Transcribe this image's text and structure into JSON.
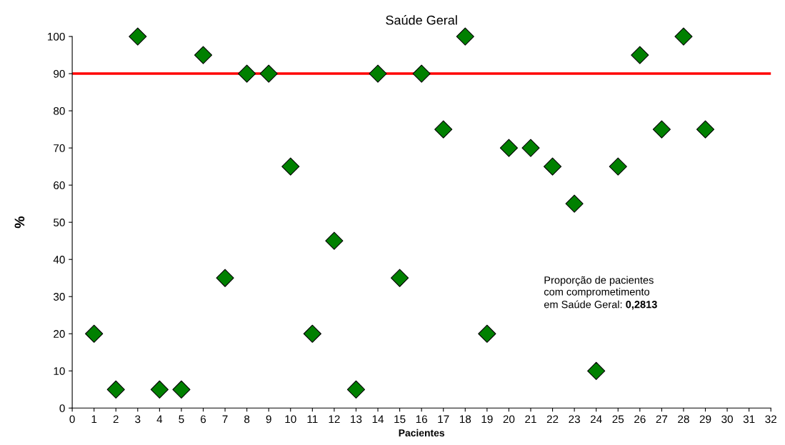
{
  "chart_data": {
    "type": "scatter",
    "title": "Saúde Geral",
    "xlabel": "Pacientes",
    "ylabel": "%",
    "x": [
      1,
      2,
      3,
      4,
      5,
      6,
      7,
      8,
      9,
      10,
      11,
      12,
      13,
      14,
      15,
      16,
      17,
      18,
      19,
      20,
      21,
      22,
      23,
      24,
      25,
      26,
      27,
      28,
      29
    ],
    "series": [
      {
        "color": "#008000",
        "values": [
          20,
          5,
          100,
          5,
          5,
          95,
          35,
          90,
          90,
          65,
          20,
          45,
          5,
          90,
          35,
          90,
          75,
          100,
          20,
          70,
          70,
          65,
          55,
          10,
          65,
          95,
          75,
          100,
          75
        ]
      }
    ],
    "marker": "diamond",
    "xlim": [
      0,
      32
    ],
    "xticks": [
      0,
      1,
      2,
      3,
      4,
      5,
      6,
      7,
      8,
      9,
      10,
      11,
      12,
      13,
      14,
      15,
      16,
      17,
      18,
      19,
      20,
      21,
      22,
      23,
      24,
      25,
      26,
      27,
      28,
      29,
      30,
      31,
      32
    ],
    "ylim": [
      0,
      100
    ],
    "yticks": [
      0,
      10,
      20,
      30,
      40,
      50,
      60,
      70,
      80,
      90,
      100
    ],
    "grid": false,
    "ref_lines": [
      {
        "axis": "y",
        "value": 90,
        "color": "#ff0000",
        "line_style": "solid"
      }
    ],
    "annotations": [
      "Proporção de pacientes\ncom comprometimento",
      "em Saúde Geral:",
      "0,2813"
    ]
  }
}
